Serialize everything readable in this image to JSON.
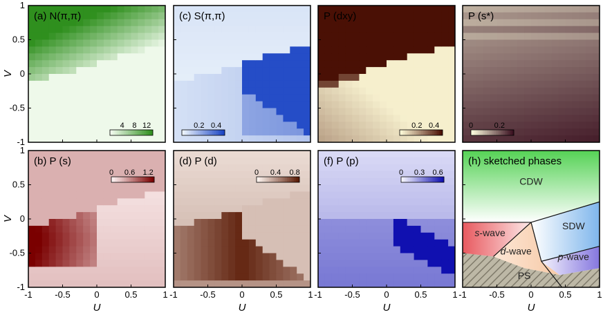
{
  "chart_data": {
    "type": "heatmap",
    "x_range": [
      -1,
      1
    ],
    "y_range": [
      -1,
      1
    ],
    "xlabel": "U",
    "ylabel": "V",
    "x_ticks": [
      "-1",
      "-0.5",
      "0",
      "0.5",
      "1"
    ],
    "y_ticks": [
      "1",
      "0.5",
      "0",
      "-0.5",
      "-1"
    ],
    "grid_size": 20,
    "panels": [
      {
        "id": "a",
        "title": "(a) N(π,π)",
        "quantity": "charge structure factor N(π,π)",
        "colormap": [
          "#f2fbee",
          "#2f8f1e"
        ],
        "colorbar_ticks": [
          "4",
          "8",
          "12"
        ],
        "range": [
          0,
          14
        ],
        "cb_pos": "bottom-right",
        "regions": "high above the line V = 0.15 + 0.3U (CDW region); low elsewhere"
      },
      {
        "id": "c",
        "title": "(c) S(π,π)",
        "quantity": "spin structure factor S(π,π)",
        "colormap": [
          "#eef6fc",
          "#1a44c4"
        ],
        "colorbar_ticks": [
          "0.2",
          "0.4"
        ],
        "range": [
          0,
          0.5
        ],
        "cb_pos": "bottom-left",
        "regions": "maximum in SDW wedge (U > 0, below V = 0.15 + 0.3U, above V = -0.25 - 0.65U); intermediate in d-wave wedge"
      },
      {
        "id": "e",
        "title": "P (dxy)",
        "quantity": "dxy pairing",
        "colormap": [
          "#fffbd8",
          "#4a1005"
        ],
        "colorbar_ticks": [
          "0.2",
          "0.4"
        ],
        "range": [
          0,
          0.5
        ],
        "cb_pos": "bottom-right",
        "regions": "saturated in CDW region; orange at V ≈ 0; increasing toward negative V"
      },
      {
        "id": "g",
        "title": "P (s*)",
        "quantity": "extended s-wave pairing",
        "colormap": [
          "#ffffe0",
          "#3a1020"
        ],
        "colorbar_ticks": [
          "0",
          "0.2"
        ],
        "range": [
          0,
          0.3
        ],
        "cb_pos": "bottom-left",
        "regions": "pink-purple bands near top, darkening toward bottom"
      },
      {
        "id": "b",
        "title": "(b) P (s)",
        "quantity": "s-wave pairing",
        "colormap": [
          "#fff4f4",
          "#7a0000"
        ],
        "colorbar_ticks": [
          "0",
          "0.6",
          "1.2"
        ],
        "range": [
          0,
          1.4
        ],
        "cb_pos": "top-right",
        "regions": "dark red s-wave region for U < 0 near V ≈ -0.3; pale for U > 0"
      },
      {
        "id": "d",
        "title": "(d) P (d)",
        "quantity": "d-wave pairing",
        "colormap": [
          "#fff6f0",
          "#5a1a05"
        ],
        "colorbar_ticks": [
          "0",
          "0.4",
          "0.8"
        ],
        "range": [
          0,
          0.9
        ],
        "cb_pos": "top-right",
        "regions": "dark brown d-wave wedge below U ≈ 0; pale stripe in SDW region"
      },
      {
        "id": "f",
        "title": "(f) P (p)",
        "quantity": "p-wave pairing",
        "colormap": [
          "#f6f6ff",
          "#1010b0"
        ],
        "colorbar_ticks": [
          "0",
          "0.3",
          "0.6"
        ],
        "range": [
          0,
          0.7
        ],
        "cb_pos": "top-right",
        "regions": "deep blue band for U > 0.1 around V ≈ -0.5; medium blue below V ≈ 0"
      },
      {
        "id": "h",
        "title": "(h) sketched phases",
        "quantity": "phase diagram",
        "phases": [
          {
            "name": "CDW",
            "color": "#55d255"
          },
          {
            "name": "s-wave",
            "style": "italic-prefix",
            "color": "#e8595f"
          },
          {
            "name": "SDW",
            "color": "#7fb6ec"
          },
          {
            "name": "d-wave",
            "style": "italic-prefix",
            "color": "#f6c9a6"
          },
          {
            "name": "p-wave",
            "style": "italic-prefix",
            "color": "#8577df"
          },
          {
            "name": "PS",
            "color": "#b8b098",
            "hatched": true
          }
        ]
      }
    ]
  }
}
